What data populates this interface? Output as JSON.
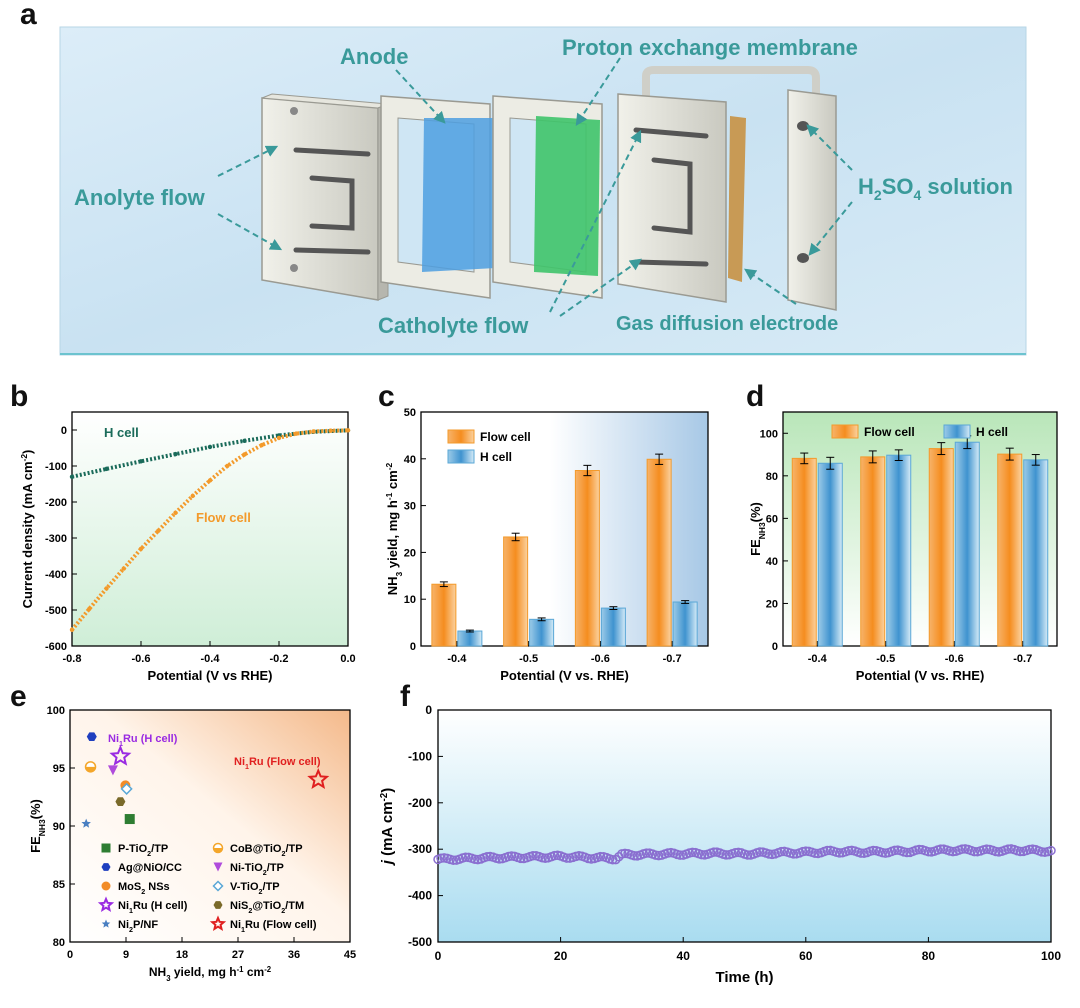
{
  "panels": {
    "a": "a",
    "b": "b",
    "c": "c",
    "d": "d",
    "e": "e",
    "f": "f"
  },
  "panel_a": {
    "labels": {
      "anode": "Anode",
      "pem": "Proton exchange membrane",
      "anolyte": "Anolyte flow",
      "h2so4_base": "H",
      "h2so4_sub1": "2",
      "h2so4_mid": "SO",
      "h2so4_sub2": "4",
      "h2so4_tail": " solution",
      "catholyte": "Catholyte flow",
      "gde": "Gas diffusion electrode"
    },
    "colors": {
      "background": "#cfe6f4",
      "label": "#3a9a9a",
      "anode": "#4d9fe0",
      "membrane": "#3fc46a",
      "gde": "#c89a55",
      "frame": "#d9d9d0"
    }
  },
  "chart_data": [
    {
      "panel": "b",
      "type": "line",
      "xlabel": "Potential (V vs RHE)",
      "ylabel": "Current density (mA cm",
      "ylabel_sup": "-2",
      "ylabel_close": ")",
      "xlim": [
        -0.8,
        0.0
      ],
      "ylim": [
        -600,
        50
      ],
      "xticks": [
        -0.8,
        -0.6,
        -0.4,
        -0.2,
        0.0
      ],
      "xtick_labels": [
        "-0.8",
        "-0.6",
        "-0.4",
        "-0.2",
        "0.0"
      ],
      "yticks": [
        0,
        -100,
        -200,
        -300,
        -400,
        -500,
        -600
      ],
      "ytick_labels": [
        "0",
        "-100",
        "-200",
        "-300",
        "-400",
        "-500",
        "-600"
      ],
      "series": [
        {
          "name": "H cell",
          "color": "#1a6b5a",
          "x": [
            -0.8,
            -0.7,
            -0.6,
            -0.5,
            -0.4,
            -0.3,
            -0.2,
            -0.1,
            0.0
          ],
          "y": [
            -130,
            -108,
            -87,
            -67,
            -47,
            -30,
            -15,
            -5,
            -1
          ]
        },
        {
          "name": "Flow cell",
          "color": "#f39a2b",
          "x": [
            -0.8,
            -0.75,
            -0.7,
            -0.65,
            -0.6,
            -0.55,
            -0.5,
            -0.45,
            -0.4,
            -0.35,
            -0.3,
            -0.25,
            -0.2,
            -0.15,
            -0.1,
            -0.05,
            0.0
          ],
          "y": [
            -555,
            -497,
            -440,
            -385,
            -330,
            -280,
            -230,
            -183,
            -140,
            -100,
            -68,
            -42,
            -22,
            -10,
            -4,
            -2,
            -1
          ]
        }
      ],
      "annotations": [
        "H cell",
        "Flow cell"
      ]
    },
    {
      "panel": "c",
      "type": "bar",
      "xlabel": "Potential (V vs. RHE)",
      "ylabel": "NH3 yield, mg h-1 cm-2",
      "ylabel_parts": [
        "NH",
        "3",
        " yield, mg h",
        "-1",
        " cm",
        "-2"
      ],
      "categories": [
        "-0.4",
        "-0.5",
        "-0.6",
        "-0.7"
      ],
      "ylim": [
        0,
        50
      ],
      "yticks": [
        0,
        10,
        20,
        30,
        40,
        50
      ],
      "ytick_labels": [
        "0",
        "10",
        "20",
        "30",
        "40",
        "50"
      ],
      "series": [
        {
          "name": "Flow cell",
          "color": "#f39a2b",
          "values": [
            13.2,
            23.3,
            37.5,
            39.9
          ],
          "errors": [
            0.5,
            0.8,
            1.1,
            1.1
          ]
        },
        {
          "name": "H cell",
          "color": "#5aa7d6",
          "values": [
            3.2,
            5.7,
            8.1,
            9.4
          ],
          "errors": [
            0.2,
            0.3,
            0.3,
            0.3
          ]
        }
      ],
      "legend": [
        "Flow cell",
        "H cell"
      ]
    },
    {
      "panel": "d",
      "type": "bar",
      "xlabel": "Potential (V vs. RHE)",
      "ylabel_parts": [
        "FE",
        "NH3",
        "(%)"
      ],
      "categories": [
        "-0.4",
        "-0.5",
        "-0.6",
        "-0.7"
      ],
      "ylim": [
        0,
        110
      ],
      "yticks": [
        0,
        20,
        40,
        60,
        80,
        100
      ],
      "ytick_labels": [
        "0",
        "20",
        "40",
        "60",
        "80",
        "100"
      ],
      "series": [
        {
          "name": "Flow  cell",
          "color": "#f39a2b",
          "values": [
            88.2,
            88.9,
            92.8,
            90.2
          ],
          "errors": [
            2.5,
            2.8,
            2.8,
            2.8
          ]
        },
        {
          "name": "H cell",
          "color": "#5aa7d6",
          "values": [
            85.9,
            89.7,
            95.8,
            87.5
          ],
          "errors": [
            2.8,
            2.5,
            3.0,
            2.5
          ]
        }
      ],
      "legend": [
        "Flow  cell",
        "H cell"
      ]
    },
    {
      "panel": "e",
      "type": "scatter",
      "xlabel_parts": [
        "NH",
        "3",
        " yield, mg h",
        "-1",
        " cm",
        "-2"
      ],
      "ylabel_parts": [
        "FE",
        "NH3",
        "(%)"
      ],
      "xlim": [
        0,
        45
      ],
      "ylim": [
        80,
        100
      ],
      "xticks": [
        0,
        9,
        18,
        27,
        36,
        45
      ],
      "xtick_labels": [
        "0",
        "9",
        "18",
        "27",
        "36",
        "45"
      ],
      "yticks": [
        80,
        85,
        90,
        95,
        100
      ],
      "ytick_labels": [
        "80",
        "85",
        "90",
        "95",
        "100"
      ],
      "points": [
        {
          "name": "P-TiO2/TP",
          "x": 9.6,
          "y": 90.6,
          "color": "#2e7d32",
          "marker": "square",
          "legend": [
            "P-TiO",
            "2",
            "/TP"
          ]
        },
        {
          "name": "CoB@TiO2/TP",
          "x": 3.3,
          "y": 95.1,
          "color": "#f4a62a",
          "marker": "halfcircle",
          "legend": [
            "CoB@TiO",
            "2",
            "/TP"
          ]
        },
        {
          "name": "Ag@NiO/CC",
          "x": 3.5,
          "y": 97.7,
          "color": "#1f3fbf",
          "marker": "hexagon",
          "legend": [
            "Ag@NiO/CC"
          ]
        },
        {
          "name": "Ni-TiO2/TP",
          "x": 6.9,
          "y": 94.8,
          "color": "#b04bdc",
          "marker": "triangle-down",
          "legend": [
            "Ni-TiO",
            "2",
            "/TP"
          ]
        },
        {
          "name": "MoS2 NSs",
          "x": 8.9,
          "y": 93.5,
          "color": "#f28c28",
          "marker": "circle",
          "legend": [
            "MoS",
            "2",
            " NSs"
          ]
        },
        {
          "name": "V-TiO2/TP",
          "x": 9.1,
          "y": 93.2,
          "color": "#5aa7d6",
          "marker": "diamond-open",
          "legend": [
            "V-TiO",
            "2",
            "/TP"
          ]
        },
        {
          "name": "Ni1Ru (H cell)",
          "x": 8.1,
          "y": 96.0,
          "color": "#9a2be2",
          "marker": "star-open",
          "legend": [
            "Ni",
            "1",
            "Ru (H cell)"
          ]
        },
        {
          "name": "NiS2@TiO2/TM",
          "x": 8.1,
          "y": 92.1,
          "color": "#7a6a2a",
          "marker": "hexagon",
          "legend": [
            "NiS",
            "2",
            "@TiO",
            "2",
            "/TM"
          ]
        },
        {
          "name": "Ni2P/NF",
          "x": 2.6,
          "y": 90.2,
          "color": "#4a7fc1",
          "marker": "star",
          "legend": [
            "Ni",
            "2",
            "P/NF"
          ]
        },
        {
          "name": "Ni1Ru (Flow cell)",
          "x": 39.9,
          "y": 94.0,
          "color": "#e02020",
          "marker": "star-open",
          "legend": [
            "Ni",
            "1",
            "Ru (Flow cell)"
          ]
        }
      ],
      "annotations": [
        {
          "parts": [
            "Ni",
            "1",
            "Ru (H cell)"
          ],
          "color": "#9a2be2"
        },
        {
          "parts": [
            "Ni",
            "1",
            "Ru (Flow cell)"
          ],
          "color": "#e02020"
        }
      ]
    },
    {
      "panel": "f",
      "type": "line",
      "xlabel": "Time (h)",
      "ylabel_parts": [
        "j",
        " (mA cm",
        "-2",
        ")"
      ],
      "xlim": [
        0,
        100
      ],
      "ylim": [
        -500,
        0
      ],
      "xticks": [
        0,
        20,
        40,
        60,
        80,
        100
      ],
      "xtick_labels": [
        "0",
        "20",
        "40",
        "60",
        "80",
        "100"
      ],
      "yticks": [
        0,
        -100,
        -200,
        -300,
        -400,
        -500
      ],
      "ytick_labels": [
        "0",
        "-100",
        "-200",
        "-300",
        "-400",
        "-500"
      ],
      "series": [
        {
          "name": "j",
          "color": "#8a6fd0",
          "x": [
            0,
            5,
            10,
            15,
            20,
            25,
            29,
            30,
            35,
            40,
            45,
            50,
            55,
            60,
            65,
            70,
            75,
            80,
            85,
            90,
            95,
            100
          ],
          "y": [
            -322,
            -320,
            -318,
            -317,
            -316,
            -318,
            -320,
            -312,
            -311,
            -310,
            -309,
            -310,
            -308,
            -307,
            -305,
            -306,
            -305,
            -303,
            -302,
            -303,
            -302,
            -304
          ]
        }
      ]
    }
  ]
}
